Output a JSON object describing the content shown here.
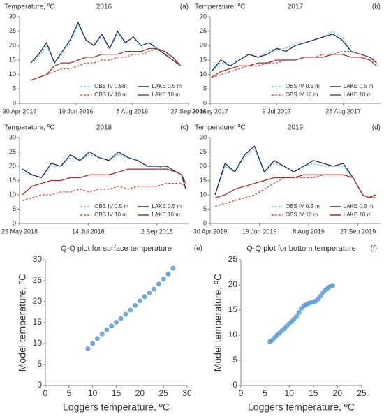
{
  "chart_data": [
    {
      "type": "line",
      "title": "2016",
      "ylabel": "Temperature, ºC",
      "panel_label": "(a)",
      "legend_loc": "lower right",
      "xlim": [
        "2016-04-30",
        "2016-09-27"
      ],
      "xticks": [
        {
          "value": "2016-04-30",
          "label": "30 Apr 2016"
        },
        {
          "value": "2016-06-19",
          "label": "19 Jun 2016"
        },
        {
          "value": "2016-08-08",
          "label": "8 Aug 2016"
        },
        {
          "value": "2016-09-27",
          "label": "27 Sep 2016"
        }
      ],
      "ylim": [
        0,
        30
      ],
      "yticks": [
        0,
        5,
        10,
        15,
        20,
        25,
        30
      ],
      "x": [
        "2016-05-10",
        "2016-05-17",
        "2016-05-24",
        "2016-05-31",
        "2016-06-07",
        "2016-06-14",
        "2016-06-21",
        "2016-06-28",
        "2016-07-05",
        "2016-07-12",
        "2016-07-19",
        "2016-07-26",
        "2016-08-02",
        "2016-08-09",
        "2016-08-16",
        "2016-08-23",
        "2016-08-30",
        "2016-09-06",
        "2016-09-13",
        "2016-09-20"
      ],
      "series": [
        {
          "name": "OBS IV 0.5m",
          "color": "#6cc4e4",
          "linestyle": "dashed",
          "values": [
            14,
            16,
            20,
            14,
            17,
            21,
            27,
            22,
            20,
            23,
            19,
            24,
            21,
            23,
            20,
            21,
            19,
            17,
            16,
            13
          ]
        },
        {
          "name": "LAKE 0.5 m",
          "color": "#1f2d5a",
          "linestyle": "solid",
          "values": [
            14,
            17,
            21,
            14,
            18,
            22,
            28,
            22,
            20,
            24,
            19,
            25,
            21,
            23,
            20,
            21,
            19,
            17,
            15,
            13
          ]
        },
        {
          "name": "OBS IV 10 m",
          "color": "#e04848",
          "linestyle": "dashed",
          "values": [
            8,
            9,
            10,
            11,
            12,
            12,
            13,
            14,
            14,
            15,
            15,
            16,
            16,
            17,
            17,
            18,
            19,
            18,
            16,
            13
          ]
        },
        {
          "name": "LAKE 10 m",
          "color": "#a8322e",
          "linestyle": "solid",
          "values": [
            8,
            9,
            10,
            13,
            14,
            14,
            15,
            16,
            16,
            17,
            17,
            17,
            18,
            18,
            18,
            19,
            19,
            18,
            16,
            13
          ]
        }
      ]
    },
    {
      "type": "line",
      "title": "2017",
      "ylabel": "Temperature, ºC",
      "panel_label": "(b)",
      "legend_loc": "lower right",
      "xlim": [
        "2017-05-20",
        "2017-09-25"
      ],
      "xticks": [
        {
          "value": "2017-05-20",
          "label": "20 May 2017"
        },
        {
          "value": "2017-07-09",
          "label": "9 Jul 2017"
        },
        {
          "value": "2017-08-28",
          "label": "28 Aug 2017"
        }
      ],
      "ylim": [
        0,
        30
      ],
      "yticks": [
        0,
        5,
        10,
        15,
        20,
        25,
        30
      ],
      "x": [
        "2017-05-21",
        "2017-05-28",
        "2017-06-04",
        "2017-06-11",
        "2017-06-18",
        "2017-06-25",
        "2017-07-02",
        "2017-07-09",
        "2017-07-16",
        "2017-07-23",
        "2017-07-30",
        "2017-08-06",
        "2017-08-13",
        "2017-08-20",
        "2017-08-27",
        "2017-09-03",
        "2017-09-10",
        "2017-09-17",
        "2017-09-22"
      ],
      "series": [
        {
          "name": "OBS IV 0.5 m",
          "color": "#6cc4e4",
          "linestyle": "dashed",
          "values": [
            11,
            14,
            13,
            15,
            17,
            16,
            18,
            19,
            19,
            21,
            21,
            22,
            23,
            25,
            23,
            18,
            17,
            16,
            15
          ]
        },
        {
          "name": "LAKE 0.5 m",
          "color": "#1f2d5a",
          "linestyle": "solid",
          "values": [
            11,
            15,
            13,
            15,
            17,
            16,
            17,
            19,
            18,
            20,
            21,
            22,
            23,
            24,
            22,
            18,
            17,
            16,
            14
          ]
        },
        {
          "name": "OBS IV 10 m",
          "color": "#e04848",
          "linestyle": "dashed",
          "values": [
            9,
            10,
            11,
            12,
            13,
            13,
            14,
            14,
            15,
            15,
            16,
            16,
            17,
            17,
            18,
            18,
            17,
            16,
            14
          ]
        },
        {
          "name": "LAKE 10 m",
          "color": "#a8322e",
          "linestyle": "solid",
          "values": [
            9,
            11,
            12,
            13,
            13,
            14,
            14,
            15,
            15,
            15,
            16,
            16,
            16,
            17,
            17,
            16,
            16,
            15,
            13
          ]
        }
      ]
    },
    {
      "type": "line",
      "title": "2018",
      "ylabel": "Temperature, ºC",
      "panel_label": "(c)",
      "legend_loc": "lower right",
      "xlim": [
        "2018-05-25",
        "2018-09-25"
      ],
      "xticks": [
        {
          "value": "2018-05-25",
          "label": "25 May 2018"
        },
        {
          "value": "2018-07-14",
          "label": "14 Jul 2018"
        },
        {
          "value": "2018-09-02",
          "label": "2 Sep 2018"
        }
      ],
      "ylim": [
        0,
        30
      ],
      "yticks": [
        0,
        5,
        10,
        15,
        20,
        25,
        30
      ],
      "x": [
        "2018-05-27",
        "2018-06-03",
        "2018-06-10",
        "2018-06-17",
        "2018-06-24",
        "2018-07-01",
        "2018-07-08",
        "2018-07-15",
        "2018-07-22",
        "2018-07-29",
        "2018-08-05",
        "2018-08-12",
        "2018-08-19",
        "2018-08-26",
        "2018-09-02",
        "2018-09-09",
        "2018-09-16",
        "2018-09-20",
        "2018-09-23"
      ],
      "series": [
        {
          "name": "OBS IV 0.5 m",
          "color": "#6cc4e4",
          "linestyle": "dashed",
          "values": [
            18,
            17,
            16,
            20,
            20,
            23,
            22,
            24,
            23,
            22,
            24,
            23,
            22,
            20,
            20,
            19,
            18,
            16,
            12
          ]
        },
        {
          "name": "LAKE 0.5 m",
          "color": "#1f2d5a",
          "linestyle": "solid",
          "values": [
            19,
            17,
            16,
            21,
            20,
            24,
            22,
            25,
            23,
            22,
            25,
            23,
            22,
            20,
            20,
            20,
            18,
            17,
            12
          ]
        },
        {
          "name": "OBS IV 10 m",
          "color": "#e04848",
          "linestyle": "dashed",
          "values": [
            8,
            9,
            10,
            10,
            11,
            11,
            12,
            11,
            12,
            12,
            13,
            12,
            13,
            13,
            13,
            14,
            14,
            14,
            13
          ]
        },
        {
          "name": "LAKE 10 m",
          "color": "#a8322e",
          "linestyle": "solid",
          "values": [
            10,
            13,
            14,
            15,
            15,
            16,
            16,
            17,
            17,
            17,
            18,
            19,
            19,
            19,
            19,
            19,
            18,
            17,
            14
          ]
        }
      ]
    },
    {
      "type": "line",
      "title": "2019",
      "ylabel": "Temperature, ºC",
      "panel_label": "(d)",
      "legend_loc": "lower right",
      "xlim": [
        "2019-04-30",
        "2019-10-20"
      ],
      "xticks": [
        {
          "value": "2019-04-30",
          "label": "30 Apr 2019"
        },
        {
          "value": "2019-06-19",
          "label": "19 Jun 2019"
        },
        {
          "value": "2019-08-08",
          "label": "8 Aug 2019"
        },
        {
          "value": "2019-09-27",
          "label": "27 Sep 2019"
        }
      ],
      "ylim": [
        0,
        30
      ],
      "yticks": [
        0,
        5,
        10,
        15,
        20,
        25,
        30
      ],
      "x": [
        "2019-05-05",
        "2019-05-15",
        "2019-05-25",
        "2019-06-04",
        "2019-06-14",
        "2019-06-24",
        "2019-07-04",
        "2019-07-14",
        "2019-07-24",
        "2019-08-03",
        "2019-08-13",
        "2019-08-23",
        "2019-09-02",
        "2019-09-12",
        "2019-09-22",
        "2019-10-02",
        "2019-10-08",
        "2019-10-15"
      ],
      "series": [
        {
          "name": "OBS IV 0.5 m",
          "color": "#6cc4e4",
          "linestyle": "dashed",
          "values": [
            10,
            20,
            18,
            23,
            26,
            18,
            21,
            20,
            18,
            20,
            21,
            20,
            20,
            20,
            16,
            10,
            9,
            10
          ]
        },
        {
          "name": "LAKE 0.5 m",
          "color": "#1f2d5a",
          "linestyle": "solid",
          "values": [
            10,
            21,
            18,
            24,
            27,
            18,
            22,
            20,
            18,
            20,
            22,
            21,
            20,
            21,
            16,
            10,
            9,
            10
          ]
        },
        {
          "name": "OBS IV 10 m",
          "color": "#e04848",
          "linestyle": "dashed",
          "values": [
            6,
            7,
            8,
            9,
            10,
            12,
            14,
            16,
            16,
            16,
            16,
            17,
            17,
            17,
            16,
            10,
            9,
            10
          ]
        },
        {
          "name": "LAKE 10 m",
          "color": "#a8322e",
          "linestyle": "solid",
          "values": [
            9,
            10,
            12,
            13,
            14,
            15,
            16,
            16,
            16,
            17,
            17,
            17,
            17,
            17,
            16,
            10,
            9,
            9
          ]
        }
      ]
    },
    {
      "type": "scatter",
      "title": "Q-Q plot for surface temperature",
      "panel_label": "(e)",
      "xlabel": "Loggers temperature, ºC",
      "ylabel": "Model temperature, ºC",
      "xlim": [
        0,
        30
      ],
      "xticks": [
        0,
        5,
        10,
        15,
        20,
        25,
        30
      ],
      "ylim": [
        0,
        30
      ],
      "yticks": [
        0,
        5,
        10,
        15,
        20,
        25,
        30
      ],
      "x": [
        9,
        10,
        11,
        12,
        13,
        14,
        15,
        16,
        17,
        18,
        19,
        20,
        21,
        22,
        23,
        24,
        25,
        26,
        27
      ],
      "series": [
        {
          "color": "#5b9bd5",
          "values": [
            8.8,
            10,
            11.2,
            12.3,
            13.3,
            14.2,
            15.1,
            16,
            17,
            18,
            19.1,
            20.2,
            21.2,
            22.1,
            23,
            24.2,
            25.4,
            26.6,
            28
          ]
        }
      ]
    },
    {
      "type": "scatter",
      "title": "Q-Q plot for bottom temperature",
      "panel_label": "(f)",
      "xlabel": "Loggers temperature, ºC",
      "ylabel": "Model temperature, ºC",
      "xlim": [
        0,
        25
      ],
      "xticks": [
        0,
        5,
        10,
        15,
        20,
        25
      ],
      "ylim": [
        0,
        25
      ],
      "yticks": [
        0,
        5,
        10,
        15,
        20,
        25
      ],
      "x": [
        6,
        6.5,
        7,
        7.5,
        8,
        8.5,
        9,
        9.5,
        10,
        10.5,
        11,
        11.5,
        12,
        12.5,
        13,
        13.5,
        14,
        14.5,
        15,
        15.5,
        16,
        16.5,
        17,
        17.5,
        18,
        18.5,
        19
      ],
      "series": [
        {
          "color": "#5b9bd5",
          "values": [
            8.7,
            9,
            9.5,
            10,
            10.4,
            10.9,
            11.3,
            11.8,
            12.3,
            12.7,
            13.2,
            13.7,
            14.5,
            15.3,
            15.8,
            16.1,
            16.3,
            16.5,
            16.6,
            16.8,
            17.2,
            17.8,
            18.5,
            19,
            19.4,
            19.7,
            19.9
          ]
        }
      ]
    }
  ]
}
